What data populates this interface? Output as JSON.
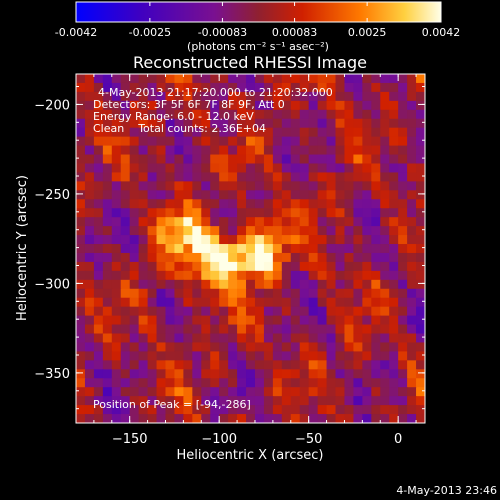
{
  "chart_data": {
    "type": "heatmap",
    "title": "Reconstructed RHESSI Image",
    "xlabel": "Heliocentric X (arcsec)",
    "ylabel": "Heliocentric Y (arcsec)",
    "xlim": [
      -180,
      15
    ],
    "ylim": [
      -378,
      -183
    ],
    "x_ticks": [
      -150,
      -100,
      -50,
      0
    ],
    "y_ticks": [
      -200,
      -250,
      -300,
      -350
    ],
    "colorbar": {
      "min": -0.0042,
      "max": 0.0042,
      "tick_values": [
        -0.0042,
        -0.0025,
        -0.00083,
        0.00083,
        0.0025,
        0.0042
      ],
      "tick_labels": [
        "-0.0042",
        "-0.0025",
        "-0.00083",
        "0.00083",
        "0.0025",
        "0.0042"
      ],
      "unit_label": "(photons cm⁻² s⁻¹ asec⁻²)"
    },
    "annotations": [
      "4-May-2013 21:17:20.000 to 21:20:32.000",
      "Detectors: 3F 5F 6F 7F 8F 9F, Att 0",
      "Energy Range: 6.0 - 12.0 keV",
      "Clean    Total counts: 2.36E+04"
    ],
    "peak_label": "Position of Peak = [-94,-286]",
    "sources": [
      {
        "x": -93,
        "y": -286,
        "amplitude": 0.0042,
        "sigma_x": 16,
        "sigma_y": 9
      },
      {
        "x": -120,
        "y": -272,
        "amplitude": 0.0028,
        "sigma_x": 11,
        "sigma_y": 9
      },
      {
        "x": -75,
        "y": -277,
        "amplitude": 0.0024,
        "sigma_x": 9,
        "sigma_y": 12
      },
      {
        "x": -108,
        "y": -300,
        "amplitude": 0.0014,
        "sigma_x": 10,
        "sigma_y": 8
      }
    ],
    "background_level": 0.0012
  },
  "footer_timestamp": "4-May-2013 23:46"
}
